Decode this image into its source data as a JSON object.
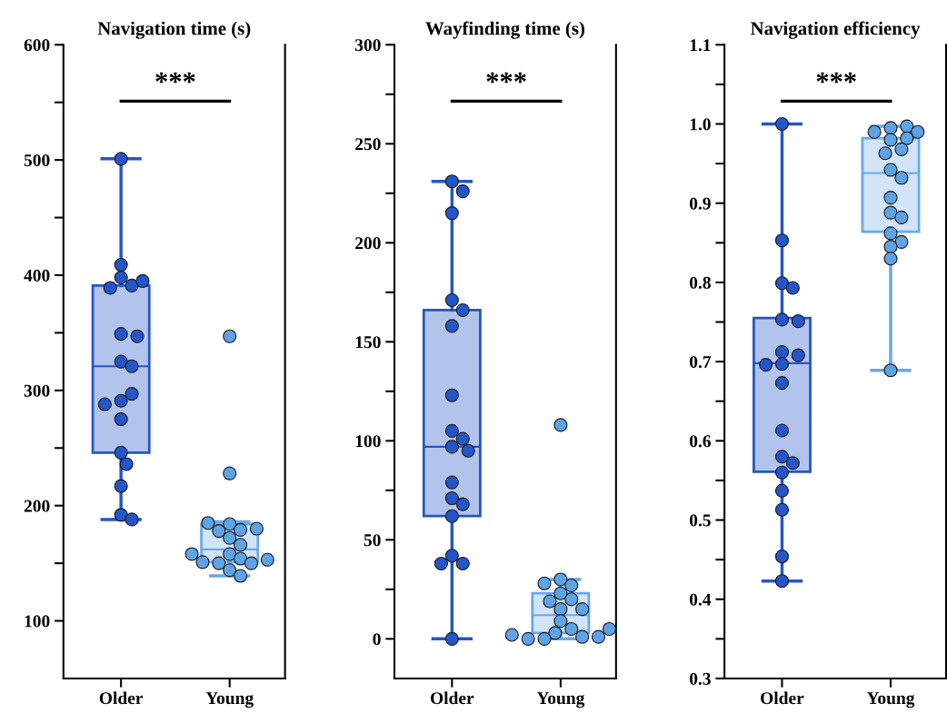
{
  "chart_data": [
    {
      "type": "box",
      "title": "Navigation time (s)",
      "categories": [
        "Older",
        "Young"
      ],
      "colors": [
        "#2456c8",
        "#68a8e8"
      ],
      "boxes": [
        {
          "low": 188,
          "q1": 246,
          "median": 321,
          "q3": 391,
          "high": 501
        },
        {
          "low": 139,
          "q1": 151,
          "median": 162,
          "q3": 184,
          "high": 186
        }
      ],
      "series": [
        {
          "type": "scatter",
          "color": "#2456c8",
          "x": [
            "Older",
            "Older",
            "Older",
            "Older",
            "Older",
            "Older",
            "Older",
            "Older",
            "Older",
            "Older",
            "Older",
            "Older",
            "Older",
            "Older",
            "Older",
            "Older",
            "Older",
            "Older",
            "Older"
          ],
          "values": [
            501,
            409,
            398,
            391,
            389,
            395,
            349,
            347,
            325,
            321,
            291,
            297,
            288,
            275,
            246,
            236,
            217,
            192,
            188
          ]
        },
        {
          "type": "scatter",
          "color": "#5ea3e6",
          "x": [
            "Young",
            "Young",
            "Young",
            "Young",
            "Young",
            "Young",
            "Young",
            "Young",
            "Young",
            "Young",
            "Young",
            "Young",
            "Young",
            "Young",
            "Young",
            "Young",
            "Young",
            "Young"
          ],
          "values": [
            347,
            228,
            184,
            179,
            178,
            180,
            185,
            172,
            166,
            158,
            154,
            150,
            144,
            150,
            151,
            153,
            158,
            139
          ]
        }
      ],
      "ylim": [
        50,
        600
      ],
      "yticks": [
        100,
        {
          "value": 150,
          "label": null
        },
        200,
        {
          "value": 250,
          "label": null
        },
        300,
        {
          "value": 350,
          "label": null
        },
        400,
        {
          "value": 450,
          "label": null
        },
        500,
        {
          "value": 550,
          "label": null
        },
        600
      ],
      "annotations": [
        "***"
      ],
      "grid": false,
      "marker": "circle"
    },
    {
      "type": "box",
      "title": "Wayfinding time (s)",
      "categories": [
        "Older",
        "Young"
      ],
      "colors": [
        "#2456c8",
        "#68a8e8"
      ],
      "boxes": [
        {
          "low": 0,
          "q1": 62,
          "median": 97,
          "q3": 166,
          "high": 231
        },
        {
          "low": 0,
          "q1": 3,
          "median": 12,
          "q3": 23,
          "high": 30
        }
      ],
      "series": [
        {
          "type": "scatter",
          "color": "#2456c8",
          "x": [
            "Older",
            "Older",
            "Older",
            "Older",
            "Older",
            "Older",
            "Older",
            "Older",
            "Older",
            "Older",
            "Older",
            "Older",
            "Older",
            "Older",
            "Older",
            "Older",
            "Older",
            "Older",
            "Older"
          ],
          "values": [
            231,
            226,
            215,
            171,
            166,
            158,
            123,
            105,
            101,
            97,
            95,
            79,
            71,
            68,
            62,
            42,
            38,
            38,
            0
          ]
        },
        {
          "type": "scatter",
          "color": "#5ea3e6",
          "x": [
            "Young",
            "Young",
            "Young",
            "Young",
            "Young",
            "Young",
            "Young",
            "Young",
            "Young",
            "Young",
            "Young",
            "Young",
            "Young",
            "Young",
            "Young",
            "Young",
            "Young",
            "Young"
          ],
          "values": [
            108,
            30,
            27,
            28,
            23,
            20,
            19,
            15,
            15,
            9,
            5,
            3,
            1,
            0,
            0,
            1,
            2,
            5
          ]
        }
      ],
      "ylim": [
        -20,
        300
      ],
      "yticks": [
        0,
        {
          "value": 25,
          "label": null
        },
        50,
        {
          "value": 75,
          "label": null
        },
        100,
        {
          "value": 125,
          "label": null
        },
        150,
        {
          "value": 175,
          "label": null
        },
        200,
        {
          "value": 225,
          "label": null
        },
        250,
        {
          "value": 275,
          "label": null
        },
        300
      ],
      "annotations": [
        "***"
      ],
      "grid": false,
      "marker": "circle"
    },
    {
      "type": "box",
      "title": "Navigation efficiency",
      "categories": [
        "Older",
        "Young"
      ],
      "colors": [
        "#2456c8",
        "#68a8e8"
      ],
      "boxes": [
        {
          "low": 0.423,
          "q1": 0.561,
          "median": 0.698,
          "q3": 0.755,
          "high": 1.0
        },
        {
          "low": 0.689,
          "q1": 0.864,
          "median": 0.938,
          "q3": 0.982,
          "high": 0.997
        }
      ],
      "series": [
        {
          "type": "scatter",
          "color": "#2456c8",
          "x": [
            "Older",
            "Older",
            "Older",
            "Older",
            "Older",
            "Older",
            "Older",
            "Older",
            "Older",
            "Older",
            "Older",
            "Older",
            "Older",
            "Older",
            "Older",
            "Older",
            "Older",
            "Older",
            "Older"
          ],
          "values": [
            1.0,
            0.853,
            0.799,
            0.793,
            0.753,
            0.751,
            0.712,
            0.708,
            0.697,
            0.696,
            0.673,
            0.613,
            0.58,
            0.572,
            0.56,
            0.537,
            0.513,
            0.454,
            0.423
          ]
        },
        {
          "type": "scatter",
          "color": "#5ea3e6",
          "x": [
            "Young",
            "Young",
            "Young",
            "Young",
            "Young",
            "Young",
            "Young",
            "Young",
            "Young",
            "Young",
            "Young",
            "Young",
            "Young",
            "Young",
            "Young",
            "Young",
            "Young",
            "Young"
          ],
          "values": [
            0.995,
            0.997,
            0.99,
            0.99,
            0.98,
            0.982,
            0.968,
            0.963,
            0.942,
            0.932,
            0.907,
            0.888,
            0.882,
            0.862,
            0.851,
            0.845,
            0.83,
            0.689
          ]
        }
      ],
      "ylim": [
        0.3,
        1.1
      ],
      "yticks": [
        {
          "value": 0.3,
          "label": "0.3"
        },
        {
          "value": 0.35,
          "label": null
        },
        {
          "value": 0.4,
          "label": "0.4"
        },
        {
          "value": 0.45,
          "label": null
        },
        {
          "value": 0.5,
          "label": "0.5"
        },
        {
          "value": 0.55,
          "label": null
        },
        {
          "value": 0.6,
          "label": "0.6"
        },
        {
          "value": 0.65,
          "label": null
        },
        {
          "value": 0.7,
          "label": "0.7"
        },
        {
          "value": 0.75,
          "label": null
        },
        {
          "value": 0.8,
          "label": "0.8"
        },
        {
          "value": 0.85,
          "label": null
        },
        {
          "value": 0.9,
          "label": "0.9"
        },
        {
          "value": 0.95,
          "label": null
        },
        {
          "value": 1.0,
          "label": "1.0"
        },
        {
          "value": 1.05,
          "label": null
        },
        {
          "value": 1.1,
          "label": "1.1"
        }
      ],
      "annotations": [
        "***"
      ],
      "grid": false,
      "marker": "circle"
    }
  ]
}
